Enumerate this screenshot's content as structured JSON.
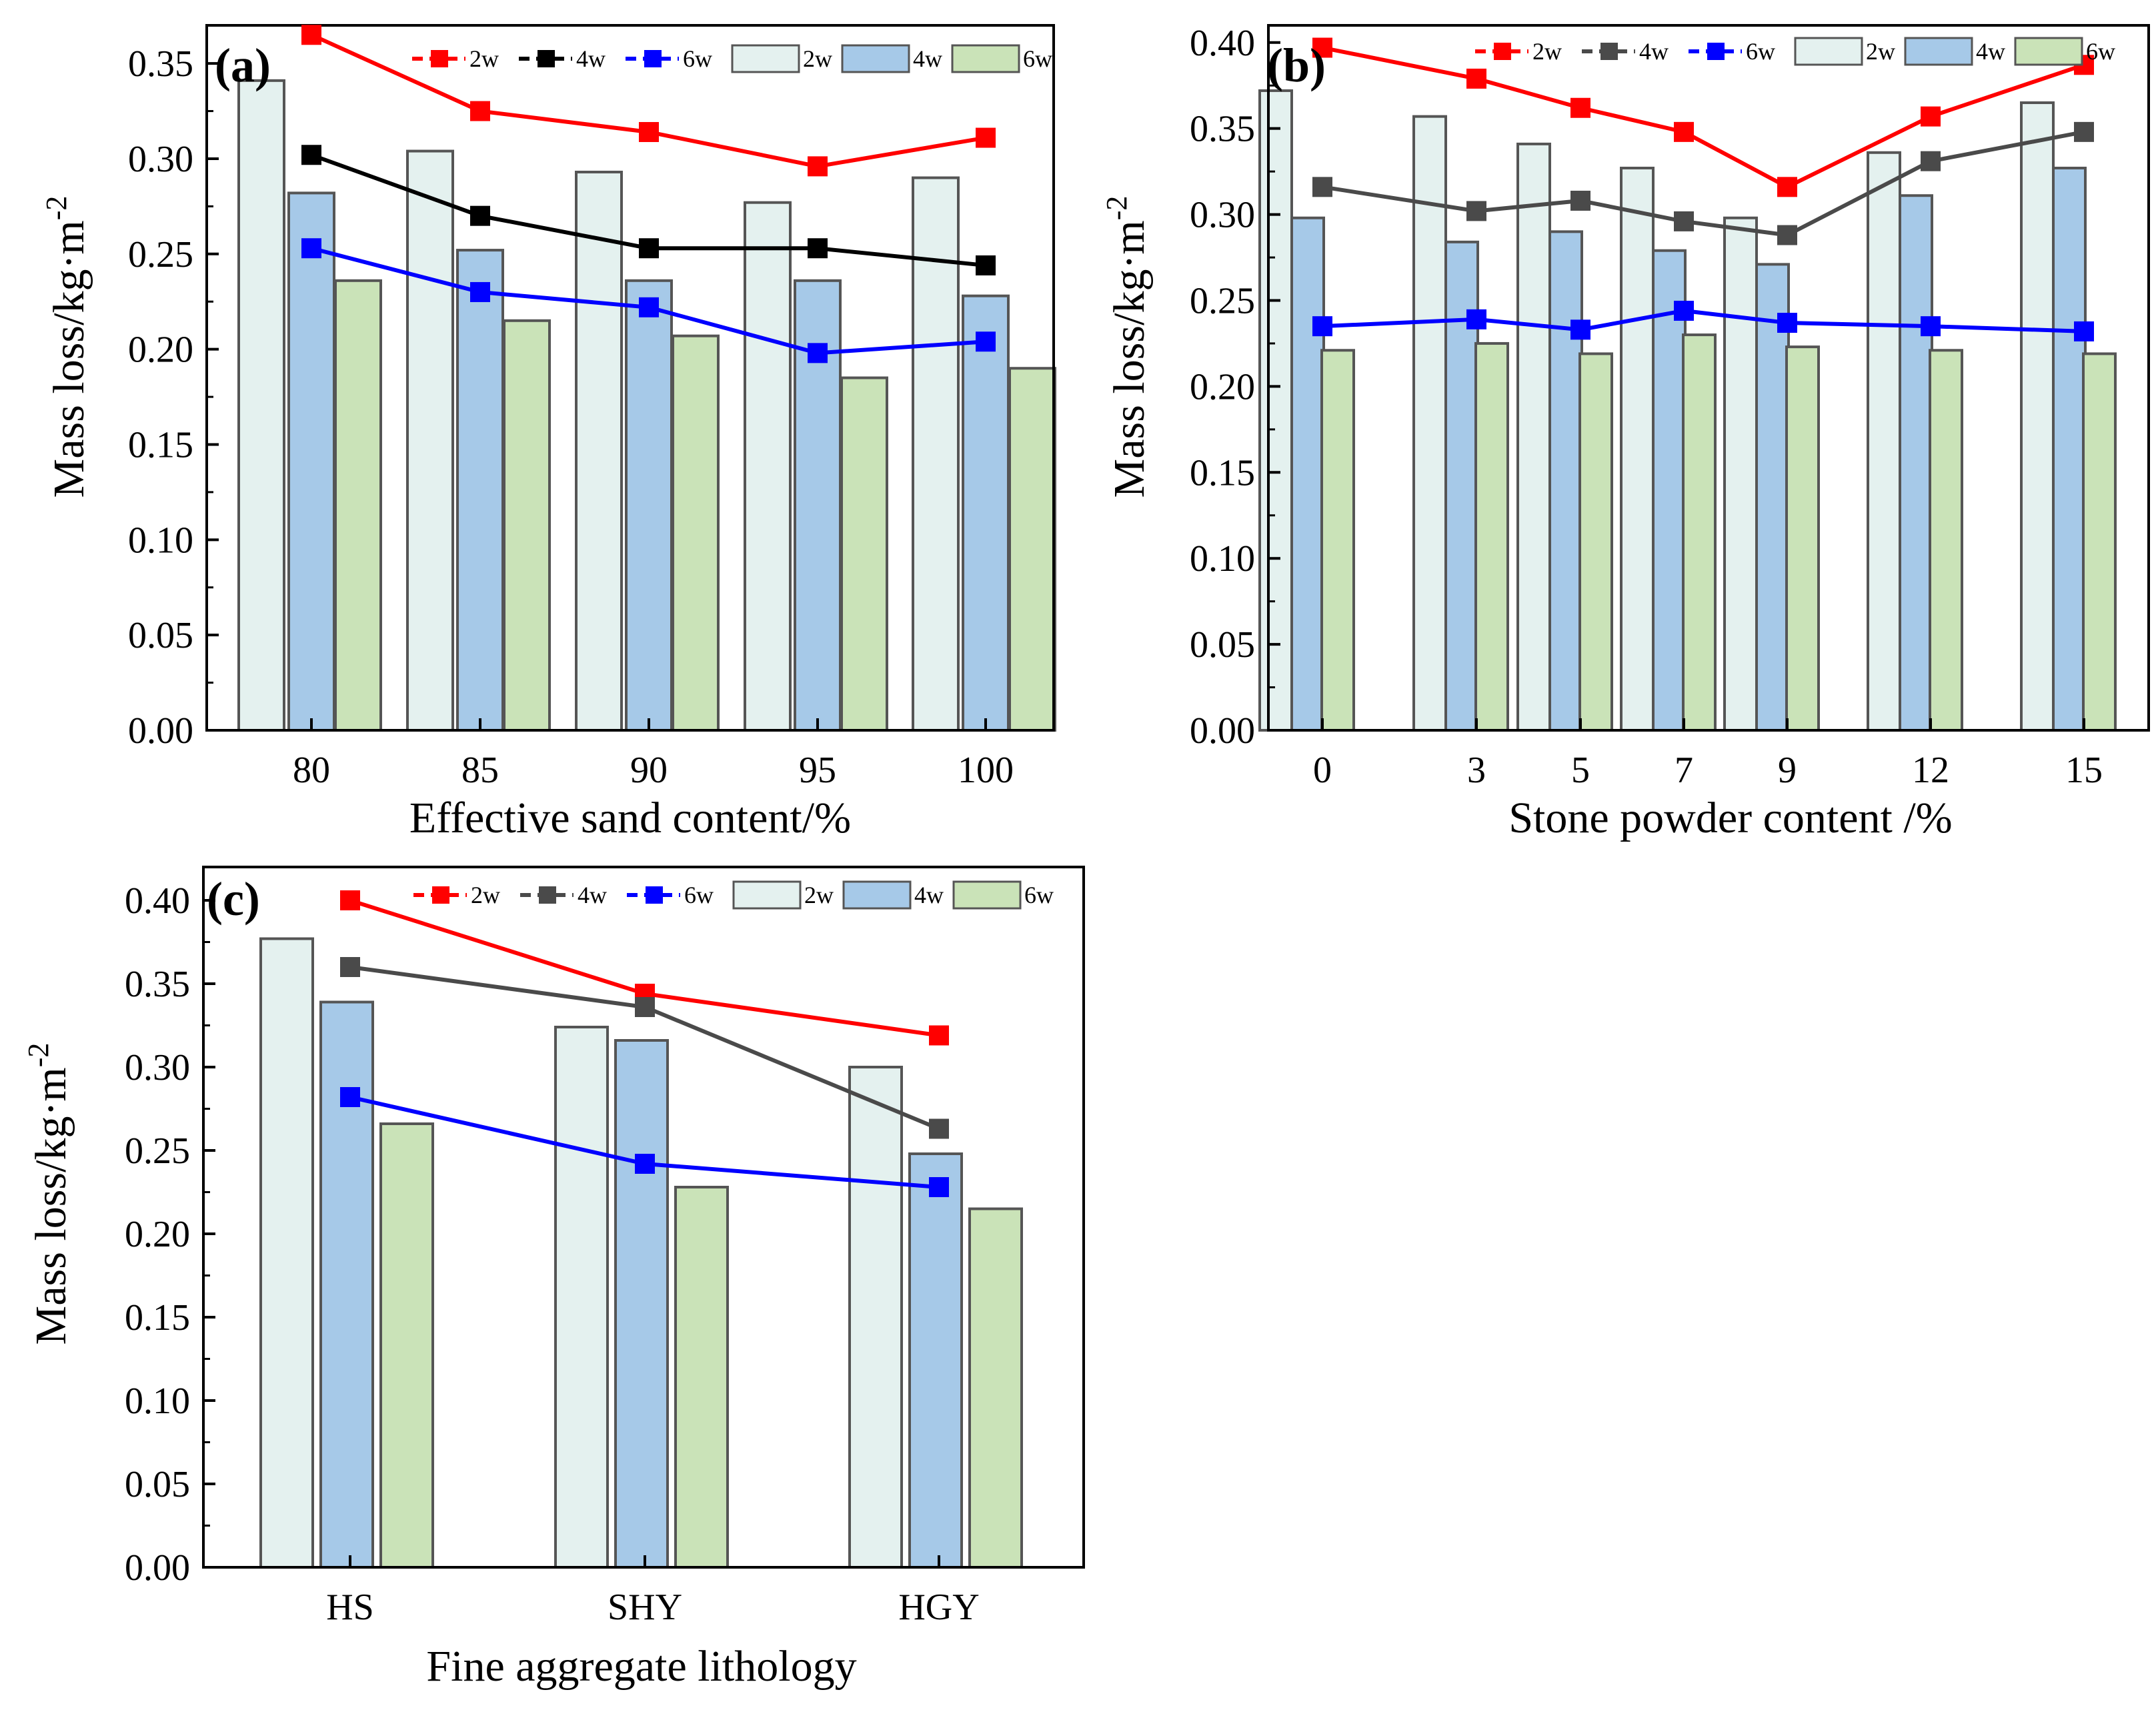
{
  "chart_data": [
    {
      "panel": "(a)",
      "type": "bar+line",
      "xlabel": "Effective sand content/%",
      "ylabel": "Mass loss/kg·m",
      "ylabel_sup": "-2",
      "categories": [
        "80",
        "85",
        "90",
        "95",
        "100"
      ],
      "ylim": [
        0,
        0.37
      ],
      "yticks": [
        "0.00",
        "0.05",
        "0.10",
        "0.15",
        "0.20",
        "0.25",
        "0.30",
        "0.35"
      ],
      "bars": [
        {
          "name": "2w",
          "values": [
            0.341,
            0.304,
            0.293,
            0.277,
            0.29
          ]
        },
        {
          "name": "4w",
          "values": [
            0.282,
            0.252,
            0.236,
            0.236,
            0.228
          ]
        },
        {
          "name": "6w",
          "values": [
            0.236,
            0.215,
            0.207,
            0.185,
            0.19
          ]
        }
      ],
      "lines": [
        {
          "name": "2w",
          "values": [
            0.365,
            0.325,
            0.314,
            0.296,
            0.311
          ]
        },
        {
          "name": "4w",
          "values": [
            0.302,
            0.27,
            0.253,
            0.253,
            0.244
          ]
        },
        {
          "name": "6w",
          "values": [
            0.253,
            0.23,
            0.222,
            0.198,
            0.204
          ]
        }
      ],
      "legend": [
        "2w",
        "4w",
        "6w",
        "2w",
        "4w",
        "6w"
      ]
    },
    {
      "panel": "(b)",
      "type": "bar+line",
      "xlabel": "Stone powder content /%",
      "ylabel": "Mass loss/kg·m",
      "ylabel_sup": "-2",
      "categories": [
        "0",
        "3",
        "5",
        "7",
        "9",
        "12",
        "15"
      ],
      "ylim": [
        0,
        0.41
      ],
      "yticks": [
        "0.00",
        "0.05",
        "0.10",
        "0.15",
        "0.20",
        "0.25",
        "0.30",
        "0.35",
        "0.40"
      ],
      "bars": [
        {
          "name": "2w",
          "values": [
            0.372,
            0.357,
            0.341,
            0.327,
            0.298,
            0.336,
            0.365
          ]
        },
        {
          "name": "4w",
          "values": [
            0.298,
            0.284,
            0.29,
            0.279,
            0.271,
            0.311,
            0.327
          ]
        },
        {
          "name": "6w",
          "values": [
            0.221,
            0.225,
            0.219,
            0.23,
            0.223,
            0.221,
            0.219
          ]
        }
      ],
      "lines": [
        {
          "name": "2w",
          "values": [
            0.397,
            0.379,
            0.362,
            0.348,
            0.316,
            0.357,
            0.387
          ]
        },
        {
          "name": "4w",
          "values": [
            0.316,
            0.302,
            0.308,
            0.296,
            0.288,
            0.331,
            0.348
          ]
        },
        {
          "name": "6w",
          "values": [
            0.235,
            0.239,
            0.233,
            0.244,
            0.237,
            0.235,
            0.232
          ]
        }
      ],
      "legend": [
        "2w",
        "4w",
        "6w",
        "2w",
        "4w",
        "6w"
      ]
    },
    {
      "panel": "(c)",
      "type": "bar+line",
      "xlabel": "Fine aggregate lithology",
      "ylabel": "Mass loss/kg·m",
      "ylabel_sup": "-2",
      "categories": [
        "HS",
        "SHY",
        "HGY"
      ],
      "ylim": [
        0,
        0.42
      ],
      "yticks": [
        "0.00",
        "0.05",
        "0.10",
        "0.15",
        "0.20",
        "0.25",
        "0.30",
        "0.35",
        "0.40"
      ],
      "bars": [
        {
          "name": "2w",
          "values": [
            0.377,
            0.324,
            0.3
          ]
        },
        {
          "name": "4w",
          "values": [
            0.339,
            0.316,
            0.248
          ]
        },
        {
          "name": "6w",
          "values": [
            0.266,
            0.228,
            0.215
          ]
        }
      ],
      "lines": [
        {
          "name": "2w",
          "values": [
            0.4,
            0.344,
            0.319
          ]
        },
        {
          "name": "4w",
          "values": [
            0.36,
            0.336,
            0.263
          ]
        },
        {
          "name": "6w",
          "values": [
            0.282,
            0.242,
            0.228
          ]
        }
      ],
      "legend": [
        "2w",
        "4w",
        "6w",
        "2w",
        "4w",
        "6w"
      ]
    }
  ],
  "colors": {
    "bar_2w": "#e4f1ef",
    "bar_4w": "#a6c9e8",
    "bar_6w": "#cae3b8",
    "bar_edge": "#555555",
    "line_2w": "#ff0000",
    "line_4w_a": "#000000",
    "line_4w_bc": "#4a4a4a",
    "line_6w": "#0000ff"
  }
}
